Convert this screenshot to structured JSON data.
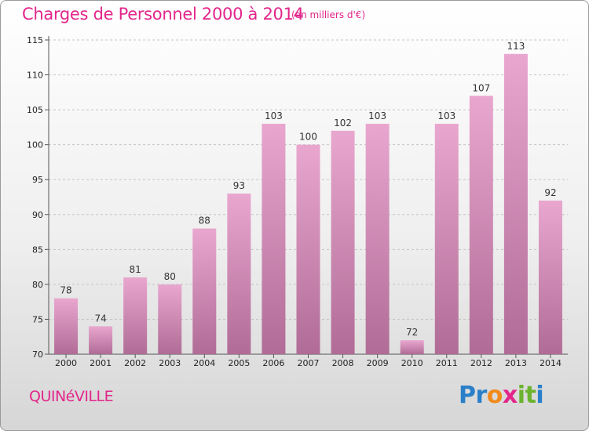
{
  "header": {
    "title": "Charges de Personnel 2000 à 2014",
    "subtitle": "(en milliers d'€)"
  },
  "footer": {
    "commune": "QUINéVILLE",
    "logo": "Proxiti",
    "logo_letters": [
      {
        "ch": "P",
        "color": "#2a7fc9"
      },
      {
        "ch": "r",
        "color": "#2a7fc9"
      },
      {
        "ch": "o",
        "color": "#f08a1c"
      },
      {
        "ch": "x",
        "color": "#e2268b"
      },
      {
        "ch": "i",
        "color": "#6bb32e"
      },
      {
        "ch": "t",
        "color": "#6bb32e"
      },
      {
        "ch": "i",
        "color": "#2a7fc9"
      }
    ]
  },
  "colors": {
    "accent": "#e2268b",
    "bar_top": "#e9a7cf",
    "bar_bottom": "#b06c96"
  },
  "chart_data": {
    "type": "bar",
    "title": "Charges de Personnel 2000 à 2014",
    "subtitle": "(en milliers d'€)",
    "categories": [
      "2000",
      "2001",
      "2002",
      "2003",
      "2004",
      "2005",
      "2006",
      "2007",
      "2008",
      "2009",
      "2010",
      "2011",
      "2012",
      "2013",
      "2014"
    ],
    "values": [
      78,
      74,
      81,
      80,
      88,
      93,
      103,
      100,
      102,
      103,
      72,
      103,
      107,
      113,
      92
    ],
    "ylim": [
      70,
      115
    ],
    "yticks": [
      70,
      75,
      80,
      85,
      90,
      95,
      100,
      105,
      110,
      115
    ],
    "grid": true,
    "xlabel": "",
    "ylabel": ""
  }
}
